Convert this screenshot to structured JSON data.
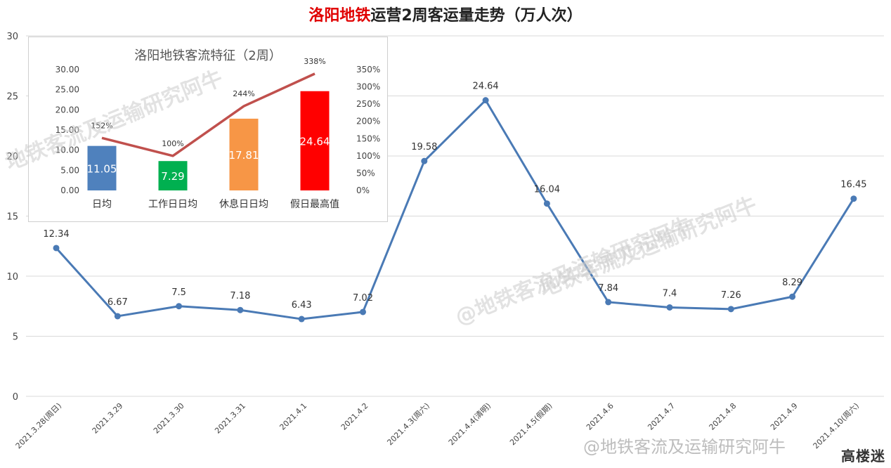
{
  "title": {
    "red_part": "洛阳地铁",
    "rest": "运营2周客运量走势（万人次）"
  },
  "chart_data": [
    {
      "type": "line",
      "categories": [
        "2021.3.28(周日)",
        "2021.3.29",
        "2021.3.30",
        "2021.3.31",
        "2021.4.1",
        "2021.4.2",
        "2021.4.3(周六)",
        "2021.4.4(清明)",
        "2021.4.5(假期)",
        "2021.4.6",
        "2021.4.7",
        "2021.4.8",
        "2021.4.9",
        "2021.4.10(周六)"
      ],
      "values": [
        12.34,
        6.67,
        7.5,
        7.18,
        6.43,
        7.02,
        19.58,
        24.64,
        16.04,
        7.84,
        7.4,
        7.26,
        8.29,
        16.45
      ],
      "data_labels": [
        "12.34",
        "6.67",
        "7.5",
        "7.18",
        "6.43",
        "7.02",
        "19.58",
        "24.64",
        "16.04",
        "7.84",
        "7.4",
        "7.26",
        "8.29",
        "16.45"
      ],
      "ylim": [
        0,
        30
      ],
      "yticks": [
        "0",
        "5",
        "10",
        "15",
        "20",
        "25",
        "30"
      ],
      "line_color": "#4a7ab5",
      "grid": true
    },
    {
      "type": "bar",
      "title": "洛阳地铁客流特征（2周）",
      "categories": [
        "日均",
        "工作日日均",
        "休息日日均",
        "假日最高值"
      ],
      "values": [
        11.05,
        7.29,
        17.81,
        24.64
      ],
      "bar_labels": [
        "11.05",
        "7.29",
        "17.81",
        "24.64"
      ],
      "bar_colors": [
        "#4f81bd",
        "#00b050",
        "#f79646",
        "#ff0000"
      ],
      "ylim": [
        0,
        30
      ],
      "yticks": [
        "0.00",
        "5.00",
        "10.00",
        "15.00",
        "20.00",
        "25.00",
        "30.00"
      ],
      "line_series": {
        "values": [
          152,
          100,
          244,
          338
        ],
        "labels": [
          "152%",
          "100%",
          "244%",
          "338%"
        ],
        "color": "#c0504d"
      },
      "y2lim": [
        0,
        350
      ],
      "y2ticks": [
        "0%",
        "50%",
        "100%",
        "150%",
        "200%",
        "250%",
        "300%",
        "350%"
      ]
    }
  ],
  "watermarks": {
    "main": "@地铁客流及运输研究阿牛",
    "repeat": "地铁客流及运输研究阿牛",
    "footer": "@地铁客流及运输研究阿牛",
    "logo": "高楼迷"
  }
}
